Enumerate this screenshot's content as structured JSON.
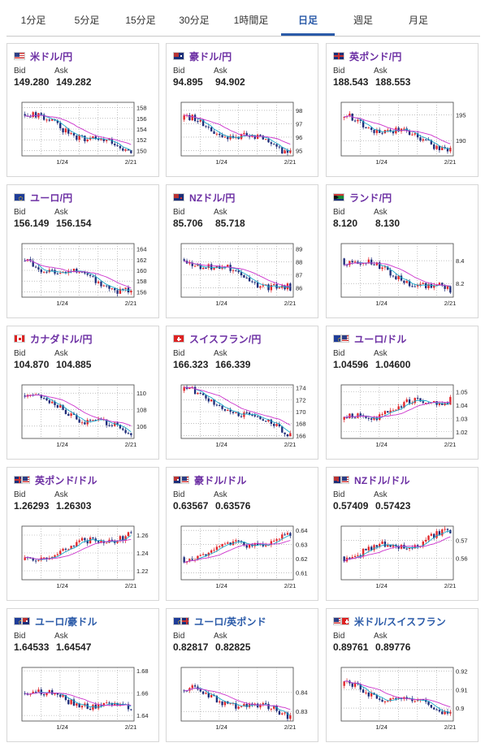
{
  "tabs": [
    {
      "label": "1分足",
      "active": false
    },
    {
      "label": "5分足",
      "active": false
    },
    {
      "label": "15分足",
      "active": false
    },
    {
      "label": "30分足",
      "active": false
    },
    {
      "label": "1時間足",
      "active": false
    },
    {
      "label": "日足",
      "active": true
    },
    {
      "label": "週足",
      "active": false
    },
    {
      "label": "月足",
      "active": false
    }
  ],
  "labels": {
    "bid": "Bid",
    "ask": "Ask"
  },
  "colors": {
    "accent": "#2a5aa8",
    "pair_title": "#6c2fa3",
    "up_candle": "#e2262a",
    "down_candle": "#1f2d7a",
    "ma_short": "#1aa8c8",
    "ma_long": "#cc33cc"
  },
  "cards": [
    {
      "pair": "米ドル/円",
      "flag": "us",
      "bid": "149.280",
      "ask": "149.282",
      "chart_data": {
        "type": "candlestick",
        "yticks": [
          "158",
          "156",
          "154",
          "152",
          "150"
        ],
        "xticks": [
          "1/24",
          "2/21"
        ],
        "ylim": [
          149,
          159
        ],
        "trend": "down",
        "start": 156.8,
        "end": 149.5
      }
    },
    {
      "pair": "豪ドル/円",
      "flag": "au",
      "bid": "94.895",
      "ask": "94.902",
      "chart_data": {
        "type": "candlestick",
        "yticks": [
          "98",
          "97",
          "96",
          "95"
        ],
        "xticks": [
          "1/24",
          "2/21"
        ],
        "ylim": [
          94.6,
          98.6
        ],
        "trend": "down",
        "start": 97.3,
        "end": 95.0
      }
    },
    {
      "pair": "英ポンド/円",
      "flag": "uk",
      "bid": "188.543",
      "ask": "188.553",
      "chart_data": {
        "type": "candlestick",
        "yticks": [
          "195",
          "190"
        ],
        "xticks": [
          "1/24",
          "2/21"
        ],
        "ylim": [
          187,
          197.5
        ],
        "trend": "down",
        "start": 194.5,
        "end": 188.6
      }
    },
    {
      "pair": "ユーロ/円",
      "flag": "eu",
      "bid": "156.149",
      "ask": "156.154",
      "chart_data": {
        "type": "candlestick",
        "yticks": [
          "164",
          "162",
          "160",
          "158",
          "156"
        ],
        "xticks": [
          "1/24",
          "2/21"
        ],
        "ylim": [
          155,
          165
        ],
        "trend": "down",
        "start": 161.8,
        "end": 156.2
      }
    },
    {
      "pair": "NZドル/円",
      "flag": "nz",
      "bid": "85.706",
      "ask": "85.718",
      "chart_data": {
        "type": "candlestick",
        "yticks": [
          "89",
          "88",
          "87",
          "86"
        ],
        "xticks": [
          "1/24",
          "2/21"
        ],
        "ylim": [
          85.3,
          89.4
        ],
        "trend": "down",
        "start": 88.2,
        "end": 85.8
      }
    },
    {
      "pair": "ランド/円",
      "flag": "za",
      "bid": "8.120",
      "ask": "8.130",
      "chart_data": {
        "type": "candlestick",
        "yticks": [
          "8.4",
          "8.2"
        ],
        "xticks": [
          "1/24",
          "2/21"
        ],
        "ylim": [
          8.08,
          8.55
        ],
        "trend": "down",
        "start": 8.42,
        "end": 8.12
      }
    },
    {
      "pair": "カナダドル/円",
      "flag": "ca",
      "bid": "104.870",
      "ask": "104.885",
      "chart_data": {
        "type": "candlestick",
        "yticks": [
          "110",
          "108",
          "106"
        ],
        "xticks": [
          "1/24",
          "2/21"
        ],
        "ylim": [
          104.5,
          111
        ],
        "trend": "down",
        "start": 109.7,
        "end": 104.9
      }
    },
    {
      "pair": "スイスフラン/円",
      "flag": "ch",
      "bid": "166.323",
      "ask": "166.339",
      "chart_data": {
        "type": "candlestick",
        "yticks": [
          "174",
          "172",
          "170",
          "168",
          "166"
        ],
        "xticks": [
          "1/24",
          "2/21"
        ],
        "ylim": [
          165.5,
          174.5
        ],
        "trend": "down",
        "start": 173.5,
        "end": 166.4
      }
    },
    {
      "pair": "ユーロ/ドル",
      "flag": "euus",
      "bid": "1.04596",
      "ask": "1.04600",
      "chart_data": {
        "type": "candlestick",
        "yticks": [
          "1.05",
          "1.04",
          "1.03",
          "1.02"
        ],
        "xticks": [
          "1/24",
          "2/21"
        ],
        "ylim": [
          1.015,
          1.055
        ],
        "trend": "up",
        "start": 1.029,
        "end": 1.046
      }
    },
    {
      "pair": "英ポンド/ドル",
      "flag": "ukus",
      "bid": "1.26293",
      "ask": "1.26303",
      "chart_data": {
        "type": "candlestick",
        "yticks": [
          "1.26",
          "1.24",
          "1.22"
        ],
        "xticks": [
          "1/24",
          "2/21"
        ],
        "ylim": [
          1.21,
          1.27
        ],
        "trend": "up",
        "start": 1.232,
        "end": 1.263
      }
    },
    {
      "pair": "豪ドル/ドル",
      "flag": "auus",
      "bid": "0.63567",
      "ask": "0.63576",
      "chart_data": {
        "type": "candlestick",
        "yticks": [
          "0.64",
          "0.63",
          "0.62",
          "0.61"
        ],
        "xticks": [
          "1/24",
          "2/21"
        ],
        "ylim": [
          0.605,
          0.643
        ],
        "trend": "up",
        "start": 0.621,
        "end": 0.636
      }
    },
    {
      "pair": "NZドル/ドル",
      "flag": "nzus",
      "bid": "0.57409",
      "ask": "0.57423",
      "chart_data": {
        "type": "candlestick",
        "yticks": [
          "0.57",
          "0.56"
        ],
        "xticks": [
          "1/24",
          "2/21"
        ],
        "ylim": [
          0.548,
          0.578
        ],
        "trend": "up",
        "start": 0.561,
        "end": 0.574
      }
    },
    {
      "pair": "ユーロ/豪ドル",
      "flag": "euau",
      "bid": "1.64533",
      "ask": "1.64547",
      "chart_data": {
        "type": "candlestick",
        "yticks": [
          "1.68",
          "1.66",
          "1.64"
        ],
        "xticks": [
          "1/24",
          "2/21"
        ],
        "ylim": [
          1.635,
          1.683
        ],
        "trend": "down",
        "start": 1.66,
        "end": 1.645
      }
    },
    {
      "pair": "ユーロ/英ポンド",
      "flag": "euuk",
      "bid": "0.82817",
      "ask": "0.82825",
      "chart_data": {
        "type": "candlestick",
        "yticks": [
          "0.84",
          "0.83"
        ],
        "xticks": [
          "1/24",
          "2/21"
        ],
        "ylim": [
          0.825,
          0.853
        ],
        "trend": "down",
        "start": 0.841,
        "end": 0.828
      }
    },
    {
      "pair": "米ドル/スイスフラン",
      "flag": "usch",
      "bid": "0.89761",
      "ask": "0.89776",
      "chart_data": {
        "type": "candlestick",
        "yticks": [
          "0.92",
          "0.91",
          "0.9"
        ],
        "xticks": [
          "1/24",
          "2/21"
        ],
        "ylim": [
          0.893,
          0.922
        ],
        "trend": "down",
        "start": 0.912,
        "end": 0.898
      }
    }
  ]
}
